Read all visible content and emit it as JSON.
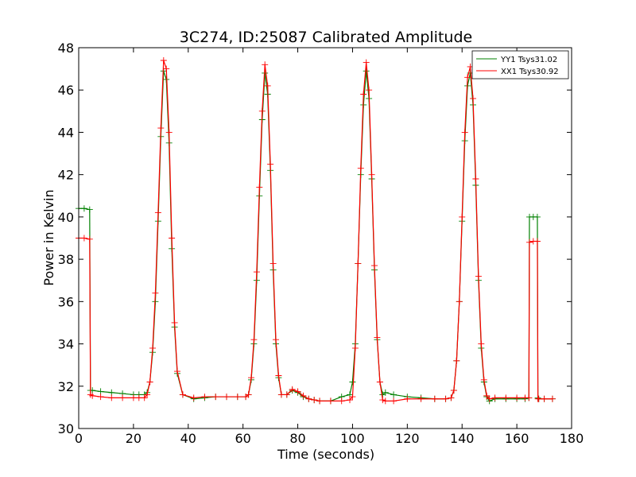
{
  "colors": {
    "yy1": "#008000",
    "xx1": "#ff0000",
    "axes": "#000000",
    "background": "#ffffff"
  },
  "chart_data": {
    "type": "line",
    "title": "3C274, ID:25087 Calibrated Amplitude",
    "xlabel": "Time (seconds)",
    "ylabel": "Power in Kelvin",
    "xlim": [
      0,
      180
    ],
    "ylim": [
      30,
      48
    ],
    "xticks": [
      0,
      20,
      40,
      60,
      80,
      100,
      120,
      140,
      160,
      180
    ],
    "yticks": [
      30,
      32,
      34,
      36,
      38,
      40,
      42,
      44,
      46,
      48
    ],
    "grid": false,
    "legend_position": "top-right",
    "marker": "plus",
    "series": [
      {
        "name": "YY1 Tsys31.02",
        "color": "#008000",
        "x": [
          0,
          2,
          4,
          4.3,
          5,
          8,
          12,
          16,
          20,
          22,
          24,
          25,
          26,
          27,
          28,
          29,
          30,
          31,
          32,
          33,
          34,
          35,
          36,
          38,
          42,
          46,
          50,
          54,
          58,
          61,
          62,
          63,
          64,
          65,
          66,
          67,
          68,
          69,
          70,
          71,
          72,
          73,
          74,
          76,
          78,
          80,
          82,
          84,
          86,
          88,
          92,
          96,
          99,
          100,
          101,
          102,
          103,
          104,
          105,
          106,
          107,
          108,
          109,
          110,
          111,
          112,
          115,
          120,
          125,
          130,
          134,
          136,
          137,
          138,
          139,
          140,
          141,
          142,
          143,
          144,
          145,
          146,
          147,
          148,
          149,
          150,
          152,
          156,
          160,
          163,
          164.4,
          164.6,
          166,
          167.5,
          167.7,
          168,
          170,
          173
        ],
        "y": [
          40.4,
          40.4,
          40.35,
          31.8,
          31.8,
          31.75,
          31.7,
          31.65,
          31.6,
          31.6,
          31.6,
          31.7,
          32.2,
          33.6,
          36.0,
          39.8,
          43.8,
          46.9,
          46.5,
          43.5,
          38.5,
          34.8,
          32.6,
          31.6,
          31.4,
          31.45,
          31.5,
          31.5,
          31.5,
          31.5,
          31.6,
          32.3,
          34.0,
          37.0,
          41.0,
          44.6,
          46.8,
          45.8,
          42.2,
          37.5,
          34.0,
          32.4,
          31.6,
          31.6,
          31.8,
          31.7,
          31.5,
          31.4,
          31.35,
          31.3,
          31.3,
          31.5,
          31.6,
          32.2,
          34.0,
          37.8,
          42.0,
          45.3,
          46.9,
          45.6,
          41.8,
          37.5,
          34.2,
          32.2,
          31.6,
          31.7,
          31.6,
          31.5,
          31.45,
          31.4,
          31.4,
          31.45,
          31.8,
          33.2,
          36.0,
          39.8,
          43.6,
          46.2,
          46.8,
          45.3,
          41.5,
          37.0,
          33.8,
          32.2,
          31.5,
          31.3,
          31.4,
          31.4,
          31.4,
          31.4,
          31.45,
          40.0,
          40.0,
          40.0,
          31.45,
          31.4,
          31.4,
          31.4
        ]
      },
      {
        "name": "XX1 Tsys30.92",
        "color": "#ff0000",
        "x": [
          0,
          2,
          4,
          4.3,
          5,
          8,
          12,
          16,
          20,
          22,
          24,
          25,
          26,
          27,
          28,
          29,
          30,
          31,
          32,
          33,
          34,
          35,
          36,
          38,
          42,
          46,
          50,
          54,
          58,
          61,
          62,
          63,
          64,
          65,
          66,
          67,
          68,
          69,
          70,
          71,
          72,
          73,
          74,
          76,
          78,
          80,
          82,
          84,
          86,
          88,
          92,
          96,
          99,
          100,
          101,
          102,
          103,
          104,
          105,
          106,
          107,
          108,
          109,
          110,
          111,
          112,
          115,
          120,
          125,
          130,
          134,
          136,
          137,
          138,
          139,
          140,
          141,
          142,
          143,
          144,
          145,
          146,
          147,
          148,
          149,
          150,
          152,
          156,
          160,
          163,
          164.4,
          164.6,
          166,
          167.5,
          167.7,
          168,
          170,
          173
        ],
        "y": [
          39.0,
          39.0,
          38.95,
          31.6,
          31.55,
          31.5,
          31.45,
          31.45,
          31.45,
          31.45,
          31.45,
          31.6,
          32.2,
          33.8,
          36.4,
          40.2,
          44.2,
          47.4,
          47.0,
          44.0,
          39.0,
          35.0,
          32.7,
          31.6,
          31.45,
          31.5,
          31.5,
          31.5,
          31.5,
          31.5,
          31.6,
          32.4,
          34.2,
          37.4,
          41.4,
          45.0,
          47.2,
          46.2,
          42.5,
          37.8,
          34.2,
          32.5,
          31.6,
          31.6,
          31.85,
          31.75,
          31.55,
          31.4,
          31.35,
          31.3,
          31.3,
          31.3,
          31.35,
          31.5,
          33.8,
          37.8,
          42.3,
          45.8,
          47.3,
          46.0,
          42.0,
          37.7,
          34.3,
          32.2,
          31.35,
          31.3,
          31.3,
          31.4,
          31.4,
          31.4,
          31.4,
          31.45,
          31.8,
          33.2,
          36.0,
          40.0,
          44.0,
          46.6,
          47.1,
          45.6,
          41.8,
          37.2,
          34.0,
          32.3,
          31.55,
          31.4,
          31.45,
          31.45,
          31.45,
          31.45,
          31.45,
          38.8,
          38.85,
          38.85,
          31.4,
          31.4,
          31.4,
          31.4
        ]
      }
    ]
  }
}
